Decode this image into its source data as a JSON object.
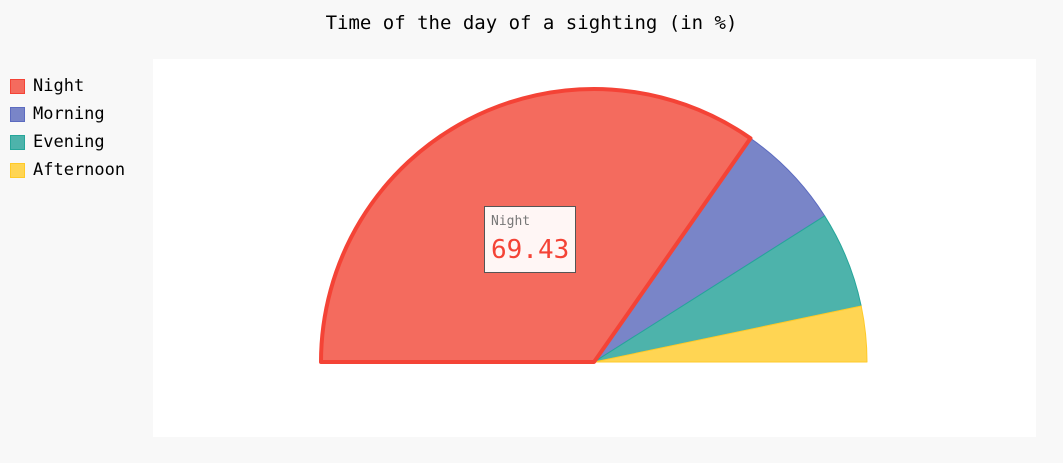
{
  "chart_data": {
    "type": "pie",
    "variant": "half",
    "title": "Time of the day of a sighting (in %)",
    "slices": [
      {
        "label": "Night",
        "value": 69.43,
        "color": "#f46b5e",
        "stroke": "#f44336"
      },
      {
        "label": "Morning",
        "value": 12.6,
        "color": "#7985c8",
        "stroke": "#5c6bc0"
      },
      {
        "label": "Evening",
        "value": 11.4,
        "color": "#4db3ab",
        "stroke": "#26a69a"
      },
      {
        "label": "Afternoon",
        "value": 6.57,
        "color": "#ffd553",
        "stroke": "#ffca28"
      }
    ],
    "legend_position": "left",
    "tooltip": {
      "label": "Night",
      "value": "69.43"
    }
  }
}
